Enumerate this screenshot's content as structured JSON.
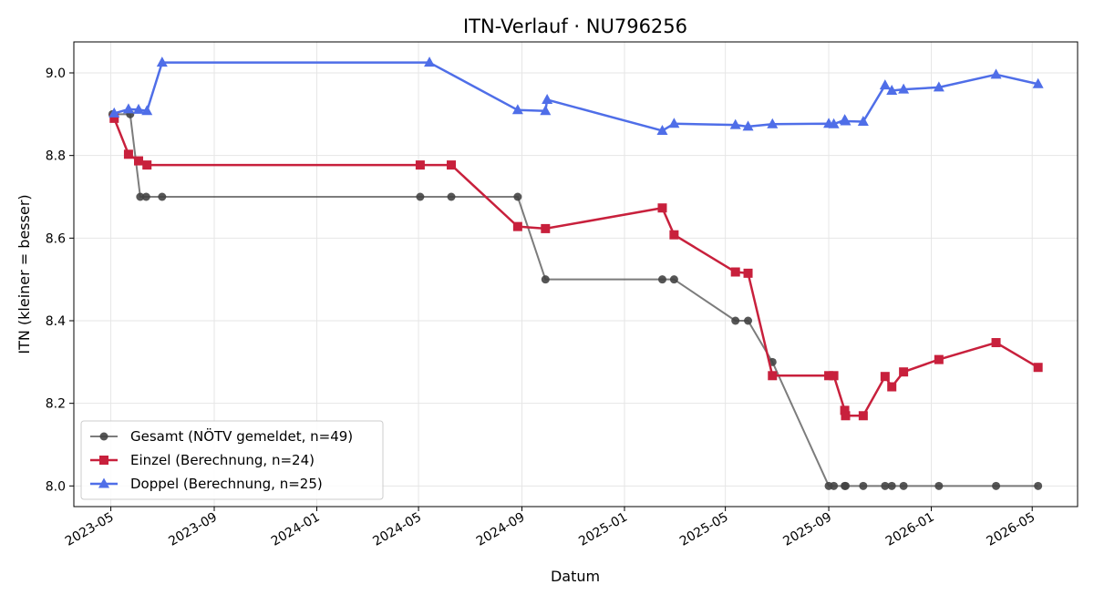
{
  "chart_data": {
    "type": "line",
    "title": "ITN-Verlauf · NU796256",
    "xlabel": "Datum",
    "ylabel": "ITN  (kleiner = besser)",
    "x_ticks": [
      "2023-05",
      "2023-09",
      "2024-01",
      "2024-05",
      "2024-09",
      "2025-01",
      "2025-05",
      "2025-09",
      "2026-01",
      "2026-05"
    ],
    "y_ticks": [
      "8.0",
      "8.2",
      "8.4",
      "8.6",
      "8.8",
      "9.0"
    ],
    "xlim": [
      "2023-03-18",
      "2026-06-24"
    ],
    "ylim": [
      7.95,
      9.075
    ],
    "grid": true,
    "legend_position": "lower-left",
    "series": [
      {
        "name": "Gesamt (NÖTV gemeldet, n=49)",
        "color": "#444444",
        "marker": "circle",
        "points": [
          [
            "2023-05-03",
            8.9
          ],
          [
            "2023-05-24",
            8.9
          ],
          [
            "2023-06-05",
            8.7
          ],
          [
            "2023-06-12",
            8.7
          ],
          [
            "2023-07-01",
            8.7
          ],
          [
            "2024-05-03",
            8.7
          ],
          [
            "2024-06-09",
            8.7
          ],
          [
            "2024-08-27",
            8.7
          ],
          [
            "2024-09-29",
            8.5
          ],
          [
            "2025-02-15",
            8.5
          ],
          [
            "2025-03-01",
            8.5
          ],
          [
            "2025-05-13",
            8.4
          ],
          [
            "2025-05-28",
            8.4
          ],
          [
            "2025-06-26",
            8.3
          ],
          [
            "2025-09-01",
            8.0
          ],
          [
            "2025-09-07",
            8.0
          ],
          [
            "2025-09-20",
            8.0
          ],
          [
            "2025-09-21",
            8.0
          ],
          [
            "2025-10-12",
            8.0
          ],
          [
            "2025-11-07",
            8.0
          ],
          [
            "2025-11-15",
            8.0
          ],
          [
            "2025-11-29",
            8.0
          ],
          [
            "2026-01-10",
            8.0
          ],
          [
            "2026-03-19",
            8.0
          ],
          [
            "2026-05-08",
            8.0
          ]
        ]
      },
      {
        "name": "Einzel (Berechnung, n=24)",
        "color": "#c8203c",
        "marker": "square",
        "points": [
          [
            "2023-05-05",
            8.89
          ],
          [
            "2023-05-22",
            8.803
          ],
          [
            "2023-06-03",
            8.787
          ],
          [
            "2023-06-13",
            8.777
          ],
          [
            "2024-05-03",
            8.777
          ],
          [
            "2024-06-09",
            8.777
          ],
          [
            "2024-08-27",
            8.628
          ],
          [
            "2024-09-29",
            8.623
          ],
          [
            "2025-02-15",
            8.673
          ],
          [
            "2025-03-01",
            8.608
          ],
          [
            "2025-05-13",
            8.518
          ],
          [
            "2025-05-28",
            8.515
          ],
          [
            "2025-06-26",
            8.267
          ],
          [
            "2025-09-01",
            8.267
          ],
          [
            "2025-09-07",
            8.267
          ],
          [
            "2025-09-20",
            8.183
          ],
          [
            "2025-09-21",
            8.17
          ],
          [
            "2025-10-12",
            8.17
          ],
          [
            "2025-11-07",
            8.265
          ],
          [
            "2025-11-15",
            8.24
          ],
          [
            "2025-11-29",
            8.276
          ],
          [
            "2026-01-10",
            8.306
          ],
          [
            "2026-03-19",
            8.347
          ],
          [
            "2026-05-08",
            8.287
          ]
        ]
      },
      {
        "name": "Doppel (Berechnung, n=25)",
        "color": "#4f6ee8",
        "marker": "triangle",
        "points": [
          [
            "2023-05-05",
            8.902
          ],
          [
            "2023-05-22",
            8.912
          ],
          [
            "2023-06-03",
            8.911
          ],
          [
            "2023-06-13",
            8.908
          ],
          [
            "2023-07-01",
            9.025
          ],
          [
            "2024-05-14",
            9.025
          ],
          [
            "2024-08-27",
            8.91
          ],
          [
            "2024-09-29",
            8.908
          ],
          [
            "2024-10-01",
            8.935
          ],
          [
            "2025-02-15",
            8.86
          ],
          [
            "2025-03-01",
            8.877
          ],
          [
            "2025-05-13",
            8.874
          ],
          [
            "2025-05-28",
            8.87
          ],
          [
            "2025-06-26",
            8.876
          ],
          [
            "2025-09-01",
            8.877
          ],
          [
            "2025-09-07",
            8.876
          ],
          [
            "2025-09-20",
            8.886
          ],
          [
            "2025-09-21",
            8.883
          ],
          [
            "2025-10-12",
            8.882
          ],
          [
            "2025-11-07",
            8.97
          ],
          [
            "2025-11-15",
            8.957
          ],
          [
            "2025-11-29",
            8.96
          ],
          [
            "2026-01-10",
            8.965
          ],
          [
            "2026-03-19",
            8.996
          ],
          [
            "2026-05-08",
            8.973
          ]
        ]
      }
    ]
  }
}
